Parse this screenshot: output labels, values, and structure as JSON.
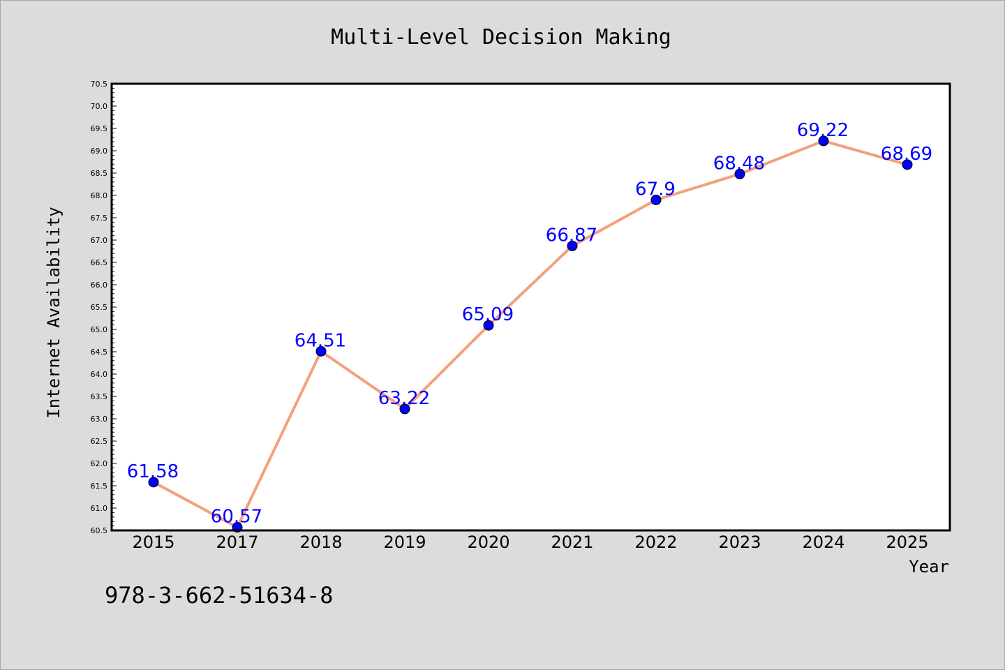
{
  "chart_data": {
    "type": "line",
    "title": "Multi-Level Decision Making",
    "xlabel": "Year",
    "ylabel": "Internet Availability",
    "categories": [
      "2015",
      "2017",
      "2018",
      "2019",
      "2020",
      "2021",
      "2022",
      "2023",
      "2024",
      "2025"
    ],
    "series": [
      {
        "values": [
          61.58,
          60.57,
          64.51,
          63.22,
          65.09,
          66.87,
          67.9,
          68.48,
          69.22,
          68.69
        ],
        "labels": [
          "61.58",
          "60.57",
          "64.51",
          "63.22",
          "65.09",
          "66.87",
          "67.9",
          "68.48",
          "69.22",
          "68.69"
        ]
      }
    ],
    "ylim": [
      60.5,
      70.5
    ],
    "yticks": [
      "60.5",
      "61.0",
      "61.5",
      "62.0",
      "62.5",
      "63.0",
      "63.5",
      "64.0",
      "64.5",
      "65.0",
      "65.5",
      "66.0",
      "66.5",
      "67.0",
      "67.5",
      "68.0",
      "68.5",
      "69.0",
      "69.5",
      "70.0",
      "70.5"
    ],
    "grid": false,
    "legend": "none",
    "colors": {
      "line": "#f4a07c",
      "marker": "#0000ff",
      "data_label": "#0000ff",
      "background": "#dcdcdc",
      "plot_background": "#ffffff"
    }
  },
  "annotation": {
    "isbn": "978-3-662-51634-8"
  }
}
